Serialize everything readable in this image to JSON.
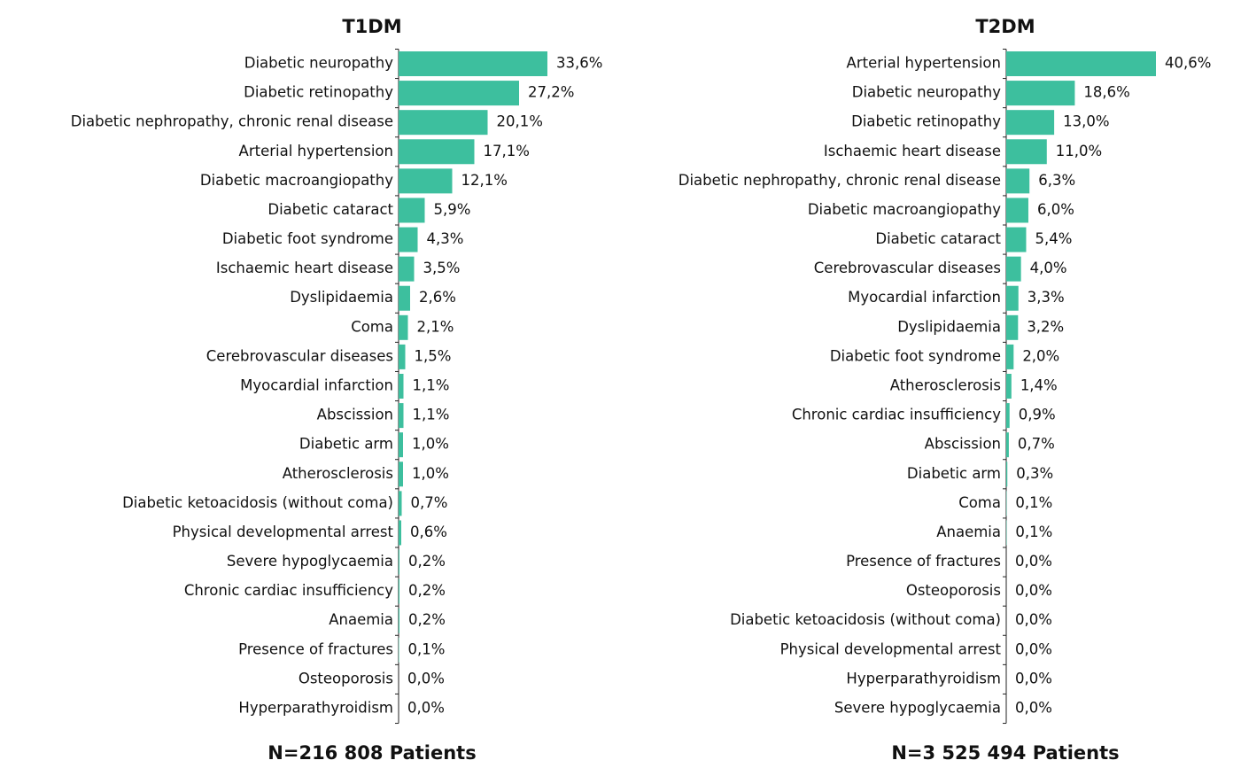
{
  "chart_data": [
    {
      "type": "barh",
      "title": "T1DM",
      "footnote": "N=216 808 Patients",
      "color": "#3dbf9e",
      "categories": [
        "Diabetic neuropathy",
        "Diabetic retinopathy",
        "Diabetic nephropathy, chronic renal disease",
        "Arterial hypertension",
        "Diabetic macroangiopathy",
        "Diabetic cataract",
        "Diabetic foot syndrome",
        "Ischaemic heart disease",
        "Dyslipidaemia",
        "Coma",
        "Cerebrovascular diseases",
        "Myocardial infarction",
        "Abscission",
        "Diabetic arm",
        "Atherosclerosis",
        "Diabetic ketoacidosis (without coma)",
        "Physical developmental arrest",
        "Severe hypoglycaemia",
        "Chronic cardiac insufficiency",
        "Anaemia",
        "Presence of fractures",
        "Osteoporosis",
        "Hyperparathyroidism"
      ],
      "values": [
        33.6,
        27.2,
        20.1,
        17.1,
        12.1,
        5.9,
        4.3,
        3.5,
        2.6,
        2.1,
        1.5,
        1.1,
        1.1,
        1.0,
        1.0,
        0.7,
        0.6,
        0.2,
        0.2,
        0.2,
        0.1,
        0.0,
        0.0
      ],
      "value_labels": [
        "33,6%",
        "27,2%",
        "20,1%",
        "17,1%",
        "12,1%",
        "5,9%",
        "4,3%",
        "3,5%",
        "2,6%",
        "2,1%",
        "1,5%",
        "1,1%",
        "1,1%",
        "1,0%",
        "1,0%",
        "0,7%",
        "0,6%",
        "0,2%",
        "0,2%",
        "0,2%",
        "0,1%",
        "0,0%",
        "0,0%"
      ]
    },
    {
      "type": "barh",
      "title": "T2DM",
      "footnote": "N=3 525 494 Patients",
      "color": "#3dbf9e",
      "categories": [
        "Arterial hypertension",
        "Diabetic neuropathy",
        "Diabetic retinopathy",
        "Ischaemic heart disease",
        "Diabetic nephropathy, chronic renal disease",
        "Diabetic macroangiopathy",
        "Diabetic cataract",
        "Cerebrovascular diseases",
        "Myocardial infarction",
        "Dyslipidaemia",
        "Diabetic foot syndrome",
        "Atherosclerosis",
        "Chronic cardiac insufficiency",
        "Abscission",
        "Diabetic arm",
        "Coma",
        "Anaemia",
        "Presence of fractures",
        "Osteoporosis",
        "Diabetic ketoacidosis (without coma)",
        "Physical developmental arrest",
        "Hyperparathyroidism",
        "Severe hypoglycaemia"
      ],
      "values": [
        40.6,
        18.6,
        13.0,
        11.0,
        6.3,
        6.0,
        5.4,
        4.0,
        3.3,
        3.2,
        2.0,
        1.4,
        0.9,
        0.7,
        0.3,
        0.1,
        0.1,
        0.0,
        0.0,
        0.0,
        0.0,
        0.0,
        0.0
      ],
      "value_labels": [
        "40,6%",
        "18,6%",
        "13,0%",
        "11,0%",
        "6,3%",
        "6,0%",
        "5,4%",
        "4,0%",
        "3,3%",
        "3,2%",
        "2,0%",
        "1,4%",
        "0,9%",
        "0,7%",
        "0,3%",
        "0,1%",
        "0,1%",
        "0,0%",
        "0,0%",
        "0,0%",
        "0,0%",
        "0,0%",
        "0,0%"
      ]
    }
  ]
}
